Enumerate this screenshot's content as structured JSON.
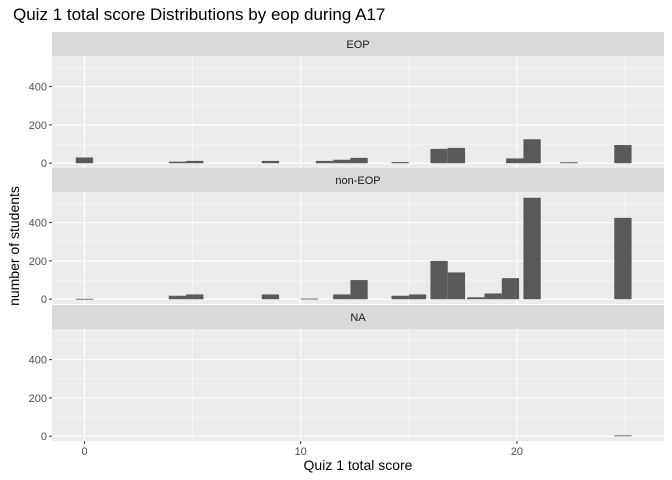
{
  "chart_data": {
    "type": "bar",
    "title": "Quiz 1 total score Distributions by eop during A17",
    "xlabel": "Quiz 1 total score",
    "ylabel": "number of students",
    "x_ticks": [
      0,
      10,
      20
    ],
    "y_ticks": [
      0,
      200,
      400
    ],
    "xlim": [
      -1.5,
      26.8
    ],
    "ylim": [
      -25,
      560
    ],
    "bin_width": 0.8,
    "grid": true,
    "colors": {
      "bar": "#595959",
      "panel": "#ebebeb",
      "strip": "#d9d9d9",
      "grid": "#ffffff"
    },
    "panels": [
      {
        "label": "EOP",
        "bars": [
          {
            "x": 0,
            "y": 30
          },
          {
            "x": 4.3,
            "y": 8
          },
          {
            "x": 5.1,
            "y": 12
          },
          {
            "x": 8.6,
            "y": 12
          },
          {
            "x": 11.1,
            "y": 12
          },
          {
            "x": 11.9,
            "y": 18
          },
          {
            "x": 12.7,
            "y": 28
          },
          {
            "x": 14.6,
            "y": 6
          },
          {
            "x": 16.4,
            "y": 75
          },
          {
            "x": 17.2,
            "y": 80
          },
          {
            "x": 19.9,
            "y": 25
          },
          {
            "x": 20.7,
            "y": 125
          },
          {
            "x": 22.4,
            "y": 5
          },
          {
            "x": 24.9,
            "y": 95
          }
        ]
      },
      {
        "label": "non-EOP",
        "bars": [
          {
            "x": 0,
            "y": 2
          },
          {
            "x": 4.3,
            "y": 18
          },
          {
            "x": 5.1,
            "y": 25
          },
          {
            "x": 8.6,
            "y": 25
          },
          {
            "x": 10.4,
            "y": 3
          },
          {
            "x": 11.9,
            "y": 25
          },
          {
            "x": 12.7,
            "y": 100
          },
          {
            "x": 14.6,
            "y": 18
          },
          {
            "x": 15.4,
            "y": 25
          },
          {
            "x": 16.4,
            "y": 200
          },
          {
            "x": 17.2,
            "y": 140
          },
          {
            "x": 18.1,
            "y": 10
          },
          {
            "x": 18.9,
            "y": 30
          },
          {
            "x": 19.7,
            "y": 110
          },
          {
            "x": 20.7,
            "y": 530
          },
          {
            "x": 24.9,
            "y": 425
          }
        ]
      },
      {
        "label": "NA",
        "bars": [
          {
            "x": 24.9,
            "y": 4
          }
        ]
      }
    ]
  }
}
